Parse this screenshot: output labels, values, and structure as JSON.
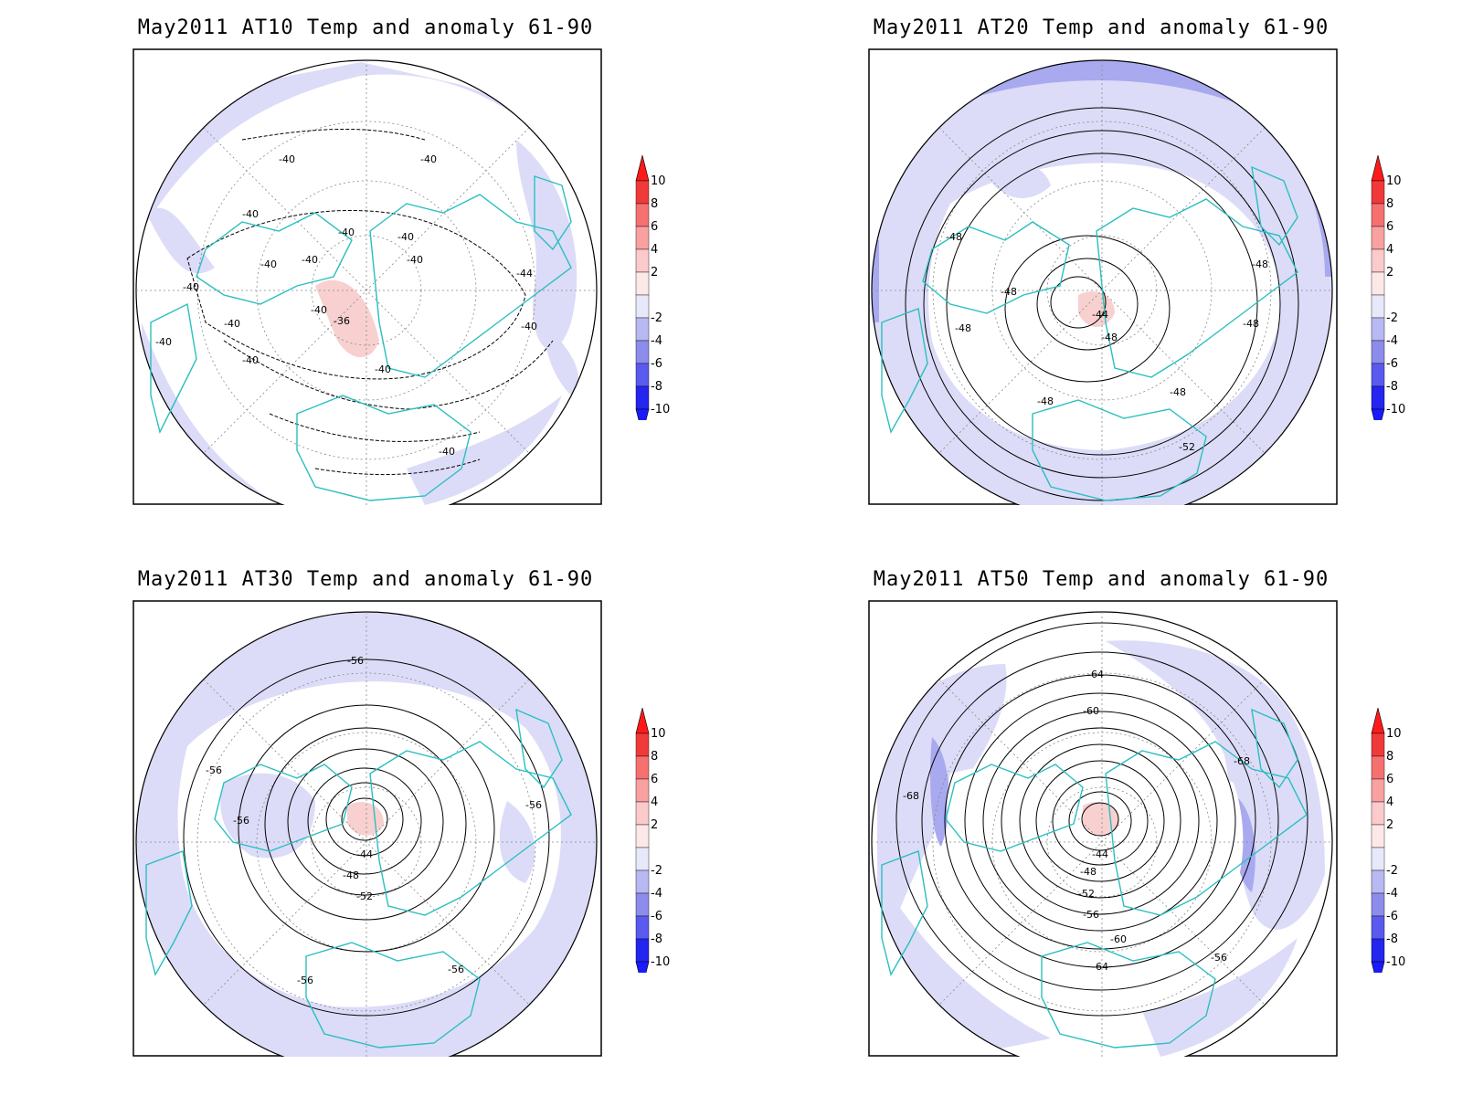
{
  "panels": [
    {
      "title": "May2011 AT10 Temp and anomaly 61-90",
      "contour_labels": [
        "-40",
        "-40",
        "-40",
        "-40",
        "-40",
        "-40",
        "-40",
        "-40",
        "-40",
        "-36",
        "-40",
        "-40",
        "-40",
        "-44",
        "-40",
        "-40",
        "-40",
        "-40"
      ]
    },
    {
      "title": "May2011 AT20 Temp and anomaly 61-90",
      "contour_labels": [
        "-48",
        "-48",
        "-48",
        "-44",
        "-48",
        "-48",
        "-48",
        "-48",
        "-52",
        "-48"
      ]
    },
    {
      "title": "May2011 AT30 Temp and anomaly 61-90",
      "contour_labels": [
        "-56",
        "-56",
        "-56",
        "-56",
        "-44",
        "-48",
        "-52",
        "-56",
        "-56"
      ]
    },
    {
      "title": "May2011 AT50 Temp and anomaly 61-90",
      "contour_labels": [
        "-64",
        "-60",
        "-68",
        "-68",
        "-44",
        "-48",
        "-52",
        "-56",
        "-60",
        "-64",
        "-56"
      ]
    }
  ],
  "colorbar": {
    "tick_labels": [
      "10",
      "8",
      "6",
      "4",
      "2",
      "-2",
      "-4",
      "-6",
      "-8",
      "-10"
    ],
    "colors": [
      "#f03a3a",
      "#f67070",
      "#f9a0a0",
      "#fbcaca",
      "#fde8e8",
      "#e8e8fb",
      "#b8b8f2",
      "#8c8cec",
      "#5a5aee",
      "#2525f0"
    ],
    "top_arrow_color": "#ff1a1a",
    "bottom_arrow_color": "#1a1aff"
  },
  "colors": {
    "coastline": "#2bbfbf",
    "anomaly_neg_light": "#dcdcf8",
    "anomaly_neg_mid": "#a9a9f0",
    "anomaly_pos_light": "#f8d0d0"
  }
}
